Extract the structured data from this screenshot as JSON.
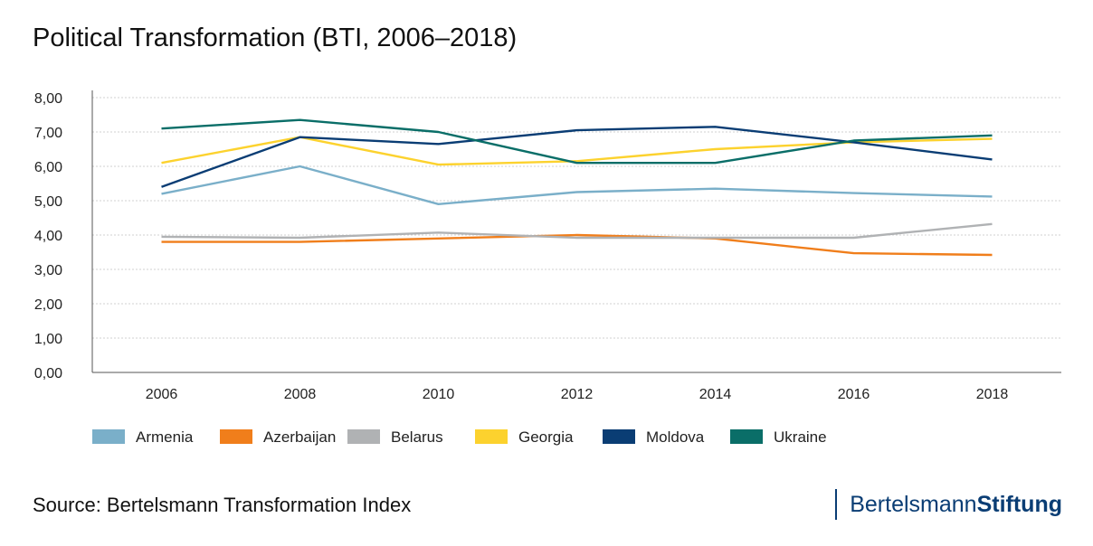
{
  "chart_data": {
    "type": "line",
    "title": "Political Transformation (BTI, 2006–2018)",
    "xlabel": "",
    "ylabel": "",
    "categories": [
      "2006",
      "2008",
      "2010",
      "2012",
      "2014",
      "2016",
      "2018"
    ],
    "ylim": [
      0,
      8
    ],
    "yticks": [
      "0,00",
      "1,00",
      "2,00",
      "3,00",
      "4,00",
      "5,00",
      "6,00",
      "7,00",
      "8,00"
    ],
    "grid": true,
    "legend_position": "bottom",
    "series": [
      {
        "name": "Armenia",
        "color": "#7aafc9",
        "values": [
          5.2,
          6.0,
          4.9,
          5.25,
          5.35,
          5.22,
          5.12
        ]
      },
      {
        "name": "Azerbaijan",
        "color": "#f07e1b",
        "values": [
          3.8,
          3.8,
          3.9,
          4.0,
          3.9,
          3.47,
          3.42
        ]
      },
      {
        "name": "Belarus",
        "color": "#b0b2b4",
        "values": [
          3.95,
          3.92,
          4.07,
          3.92,
          3.92,
          3.92,
          4.32
        ]
      },
      {
        "name": "Georgia",
        "color": "#fcd22e",
        "values": [
          6.1,
          6.85,
          6.05,
          6.15,
          6.5,
          6.7,
          6.8
        ]
      },
      {
        "name": "Moldova",
        "color": "#0a3d74",
        "values": [
          5.4,
          6.85,
          6.65,
          7.05,
          7.15,
          6.7,
          6.2
        ]
      },
      {
        "name": "Ukraine",
        "color": "#0a6e68",
        "values": [
          7.1,
          7.35,
          7.0,
          6.1,
          6.1,
          6.75,
          6.9
        ]
      }
    ]
  },
  "footer": {
    "source": "Source: Bertelsmann Transformation Index",
    "brand_regular": "Bertelsmann",
    "brand_bold": "Stiftung"
  }
}
